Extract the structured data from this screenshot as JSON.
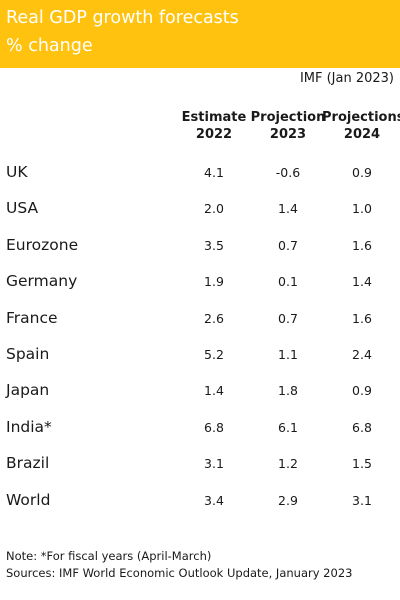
{
  "header": {
    "title_line1": "Real GDP growth forecasts",
    "title_line2": "% change",
    "background_color": "#ffc20e",
    "text_color": "#ffffff"
  },
  "source_tag": "IMF (Jan 2023)",
  "columns": [
    {
      "line1": "Estimate",
      "line2": "2022"
    },
    {
      "line1": "Projection",
      "line2": "2023"
    },
    {
      "line1": "Projections",
      "line2": "2024"
    }
  ],
  "rows": [
    {
      "country": "UK",
      "values": [
        "4.1",
        "-0.6",
        "0.9"
      ]
    },
    {
      "country": "USA",
      "values": [
        "2.0",
        "1.4",
        "1.0"
      ]
    },
    {
      "country": "Eurozone",
      "values": [
        "3.5",
        "0.7",
        "1.6"
      ]
    },
    {
      "country": "Germany",
      "values": [
        "1.9",
        "0.1",
        "1.4"
      ]
    },
    {
      "country": "France",
      "values": [
        "2.6",
        "0.7",
        "1.6"
      ]
    },
    {
      "country": "Spain",
      "values": [
        "5.2",
        "1.1",
        "2.4"
      ]
    },
    {
      "country": "Japan",
      "values": [
        "1.4",
        "1.8",
        "0.9"
      ]
    },
    {
      "country": "India*",
      "values": [
        "6.8",
        "6.1",
        "6.8"
      ]
    },
    {
      "country": "Brazil",
      "values": [
        "3.1",
        "1.2",
        "1.5"
      ]
    },
    {
      "country": "World",
      "values": [
        "3.4",
        "2.9",
        "3.1"
      ]
    }
  ],
  "notes": {
    "note": "Note: *For fiscal years (April-March)",
    "sources": "Sources: IMF World Economic Outlook Update, January 2023"
  },
  "chart_data": {
    "type": "table",
    "title": "Real GDP growth forecasts",
    "subtitle": "% change",
    "columns": [
      "Estimate 2022",
      "Projection 2023",
      "Projections 2024"
    ],
    "categories": [
      "UK",
      "USA",
      "Eurozone",
      "Germany",
      "France",
      "Spain",
      "Japan",
      "India*",
      "Brazil",
      "World"
    ],
    "series": [
      {
        "name": "Estimate 2022",
        "values": [
          4.1,
          2.0,
          3.5,
          1.9,
          2.6,
          5.2,
          1.4,
          6.8,
          3.1,
          3.4
        ]
      },
      {
        "name": "Projection 2023",
        "values": [
          -0.6,
          1.4,
          0.7,
          0.1,
          0.7,
          1.1,
          1.8,
          6.1,
          1.2,
          2.9
        ]
      },
      {
        "name": "Projections 2024",
        "values": [
          0.9,
          1.0,
          1.6,
          1.4,
          1.6,
          2.4,
          0.9,
          6.8,
          1.5,
          3.1
        ]
      }
    ]
  }
}
